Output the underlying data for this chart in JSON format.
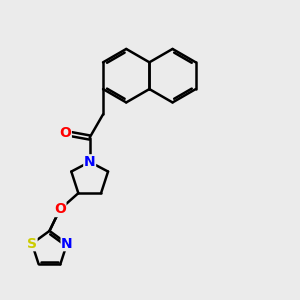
{
  "background_color": "#ebebeb",
  "bond_color": "#000000",
  "bond_width": 1.8,
  "atom_colors": {
    "O": "#ff0000",
    "N": "#0000ff",
    "S": "#cccc00",
    "C": "#000000"
  },
  "font_size": 10,
  "fig_size": [
    3.0,
    3.0
  ],
  "dpi": 100
}
